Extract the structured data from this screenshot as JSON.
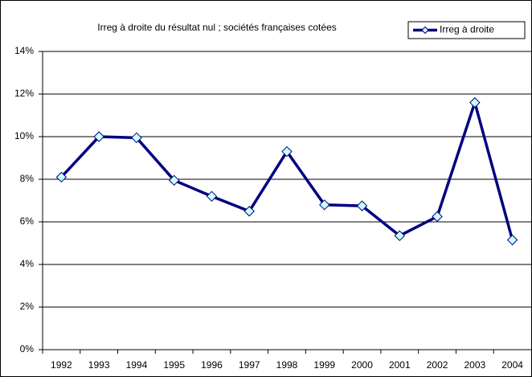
{
  "chart_data": {
    "type": "line",
    "title": "Irreg à droite du résultat nul ; sociétés françaises cotées",
    "categories": [
      "1992",
      "1993",
      "1994",
      "1995",
      "1996",
      "1997",
      "1998",
      "1999",
      "2000",
      "2001",
      "2002",
      "2003",
      "2004"
    ],
    "series": [
      {
        "name": "Irreg à droite",
        "color": "#000080",
        "marker_color": "#ccffff",
        "values": [
          8.1,
          10.0,
          9.95,
          7.95,
          7.2,
          6.5,
          9.3,
          6.8,
          6.75,
          5.35,
          6.25,
          11.6,
          5.15
        ]
      }
    ],
    "ylim": [
      0,
      14
    ],
    "yticks": [
      {
        "value": 0,
        "label": "0%"
      },
      {
        "value": 2,
        "label": "2%"
      },
      {
        "value": 4,
        "label": "4%"
      },
      {
        "value": 6,
        "label": "6%"
      },
      {
        "value": 8,
        "label": "8%"
      },
      {
        "value": 10,
        "label": "10%"
      },
      {
        "value": 12,
        "label": "12%"
      },
      {
        "value": 14,
        "label": "14%"
      }
    ],
    "grid": true,
    "legend": "top-right"
  }
}
